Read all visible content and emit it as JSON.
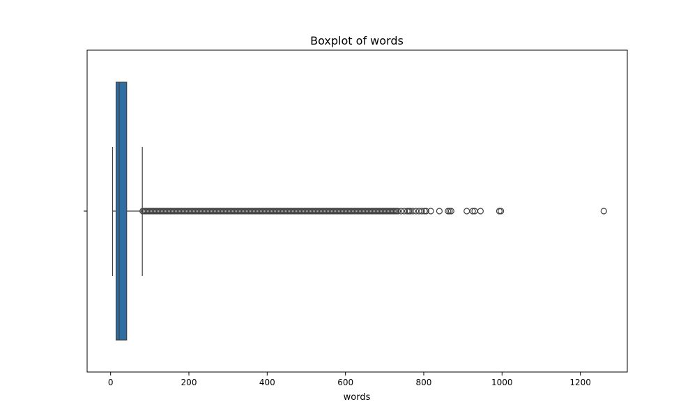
{
  "chart_data": {
    "type": "boxplot",
    "title": "Boxplot of words",
    "xlabel": "words",
    "ylabel": "",
    "orientation": "horizontal",
    "xlim": [
      -60,
      1320
    ],
    "xticks": [
      0,
      200,
      400,
      600,
      800,
      1000,
      1200
    ],
    "xtick_labels": [
      "0",
      "200",
      "400",
      "600",
      "800",
      "1000",
      "1200"
    ],
    "box": {
      "whisker_low": 5,
      "q1": 14,
      "median": 22,
      "q3": 41,
      "whisker_high": 81
    },
    "outliers_dense_range": [
      82,
      735
    ],
    "outliers": [
      742,
      750,
      758,
      762,
      765,
      772,
      780,
      788,
      795,
      802,
      806,
      818,
      840,
      862,
      866,
      870,
      910,
      925,
      930,
      945,
      993,
      997,
      1260
    ],
    "colors": {
      "box_fill": "#2f6ea3",
      "line": "#404040"
    },
    "grid": false,
    "legend": "none"
  }
}
